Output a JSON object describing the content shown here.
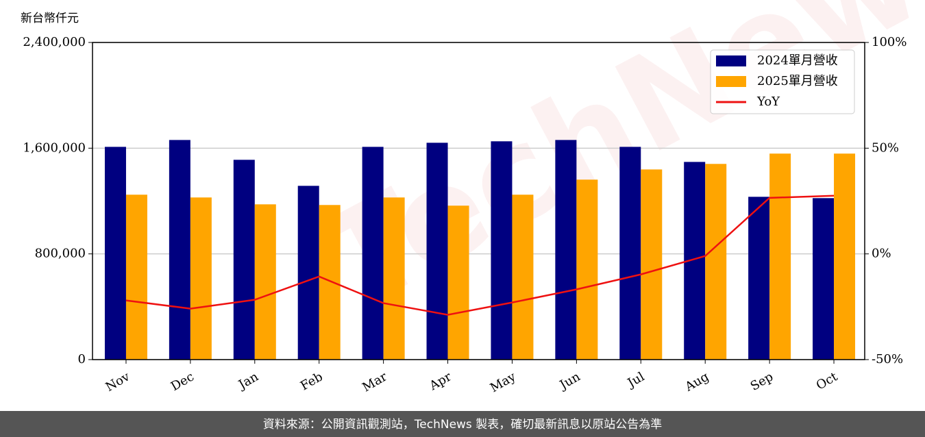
{
  "chart_data": {
    "type": "bar_line",
    "y_label": "新台幣仟元",
    "categories": [
      "Nov",
      "Dec",
      "Jan",
      "Feb",
      "Mar",
      "Apr",
      "May",
      "Jun",
      "Jul",
      "Aug",
      "Sep",
      "Oct"
    ],
    "series": [
      {
        "name": "2024單月營收",
        "color": "#000080",
        "values": [
          1610000,
          1662000,
          1512000,
          1315000,
          1610000,
          1641000,
          1652000,
          1662000,
          1610000,
          1496000,
          1232000,
          1222000
        ]
      },
      {
        "name": "2025單月營收",
        "color": "#ffa500",
        "values": [
          1248000,
          1227000,
          1175000,
          1170000,
          1227000,
          1165000,
          1248000,
          1362000,
          1439000,
          1481000,
          1559000,
          1559000
        ]
      },
      {
        "name": "YoY",
        "color": "#ee1111",
        "axis": "y2",
        "values": [
          -22.0,
          -25.9,
          -21.7,
          -10.7,
          -23.3,
          -28.8,
          -23.0,
          -16.8,
          -9.7,
          -1.0,
          26.5,
          27.5
        ]
      }
    ],
    "ylim": [
      0,
      2400000
    ],
    "yticks": [
      0,
      {
        "value": 800000,
        "label": "800,000"
      },
      {
        "value": 1600000,
        "label": "1,600,000"
      },
      {
        "value": 2400000,
        "label": "2,400,000"
      }
    ],
    "y2lim": [
      -50,
      100
    ],
    "y2ticks": [
      {
        "value": -50,
        "label": "-50%"
      },
      {
        "value": 0,
        "label": "0%"
      },
      {
        "value": 50,
        "label": "50%"
      },
      {
        "value": 100,
        "label": "100%"
      }
    ],
    "grid": true,
    "legend": "upper right",
    "watermark": "TechNews",
    "footer": "資料來源：公開資訊觀測站，TechNews 製表，確切最新訊息以原站公告為準"
  }
}
